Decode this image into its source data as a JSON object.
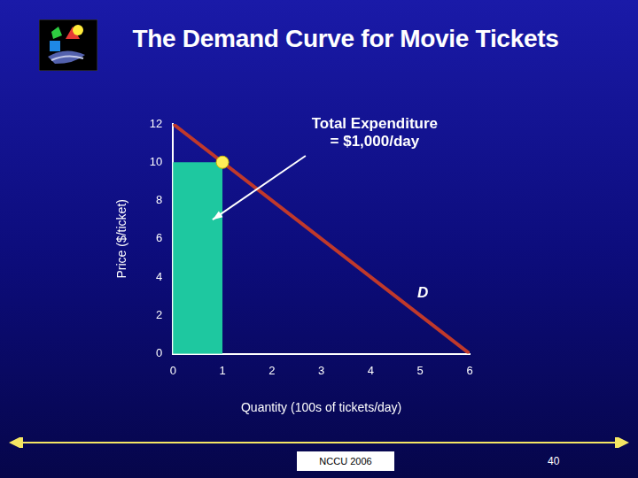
{
  "chart_data": {
    "type": "line",
    "title": "The Demand Curve for Movie Tickets",
    "x_label": "Quantity (100s of tickets/day)",
    "y_label": "Price ($/ticket)",
    "x": [
      0,
      6
    ],
    "series": [
      {
        "name": "D",
        "color": "#c0392b",
        "values": [
          12,
          0
        ]
      }
    ],
    "xlim": [
      0,
      6
    ],
    "xticks": [
      0,
      1,
      2,
      3,
      4,
      5,
      6
    ],
    "ylim": [
      0,
      12
    ],
    "yticks": [
      0,
      2,
      4,
      6,
      8,
      10,
      12
    ],
    "grid": false,
    "highlight": {
      "quantity": 1,
      "price": 10,
      "color": "#1ec8a0"
    },
    "annotations": [
      {
        "lines": [
          "Total Expenditure",
          "= $1,000/day"
        ]
      }
    ]
  },
  "footer": {
    "source": "NCCU 2006",
    "page": "40"
  }
}
